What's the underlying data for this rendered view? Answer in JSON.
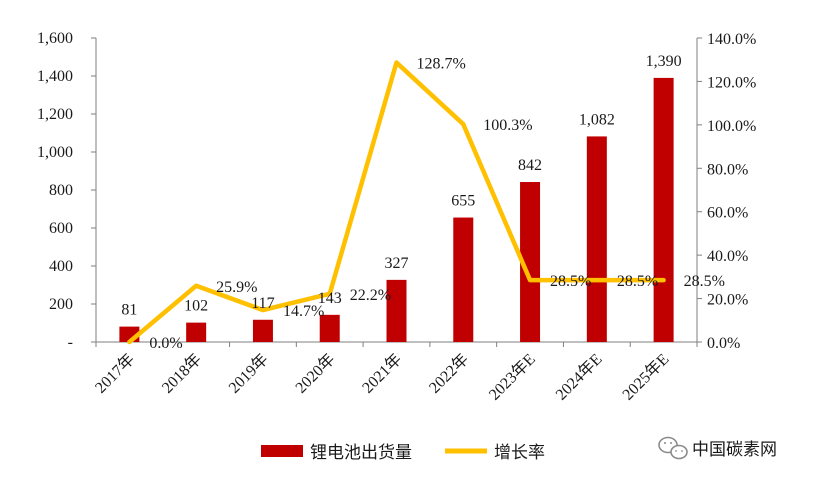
{
  "chart_data": {
    "type": "bar",
    "categories": [
      "2017年",
      "2018年",
      "2019年",
      "2020年",
      "2021年",
      "2022年",
      "2023年E",
      "2024年E",
      "2025年E"
    ],
    "series": [
      {
        "name": "锂电池出货量",
        "type": "bar",
        "axis": "left",
        "color": "#C00000",
        "values": [
          81,
          102,
          117,
          143,
          327,
          655,
          842,
          1082,
          1390
        ],
        "labels": [
          "81",
          "102",
          "117",
          "143",
          "327",
          "655",
          "842",
          "1,082",
          "1,390"
        ]
      },
      {
        "name": "增长率",
        "type": "line",
        "axis": "right",
        "color": "#FFC000",
        "values": [
          0.0,
          25.9,
          14.7,
          22.2,
          128.7,
          100.3,
          28.5,
          28.5,
          28.5
        ],
        "labels": [
          "0.0%",
          "25.9%",
          "14.7%",
          "22.2%",
          "128.7%",
          "100.3%",
          "28.5%",
          "28.5%",
          "28.5%"
        ]
      }
    ],
    "y_left": {
      "ylim": [
        0,
        1600
      ],
      "ticks": [
        0,
        200,
        400,
        600,
        800,
        1000,
        1200,
        1400,
        1600
      ],
      "tick_labels": [
        "-",
        "200",
        "400",
        "600",
        "800",
        "1,000",
        "1,200",
        "1,400",
        "1,600"
      ]
    },
    "y_right": {
      "ylim": [
        0,
        140
      ],
      "ticks": [
        0,
        20,
        40,
        60,
        80,
        100,
        120,
        140
      ],
      "tick_labels": [
        "0.0%",
        "20.0%",
        "40.0%",
        "60.0%",
        "80.0%",
        "100.0%",
        "120.0%",
        "140.0%"
      ]
    },
    "grid": false,
    "legend": {
      "position": "bottom",
      "entries": [
        "锂电池出货量",
        "增长率"
      ]
    }
  },
  "watermark": {
    "text": "中国碳素网",
    "icon": "wechat-icon"
  }
}
